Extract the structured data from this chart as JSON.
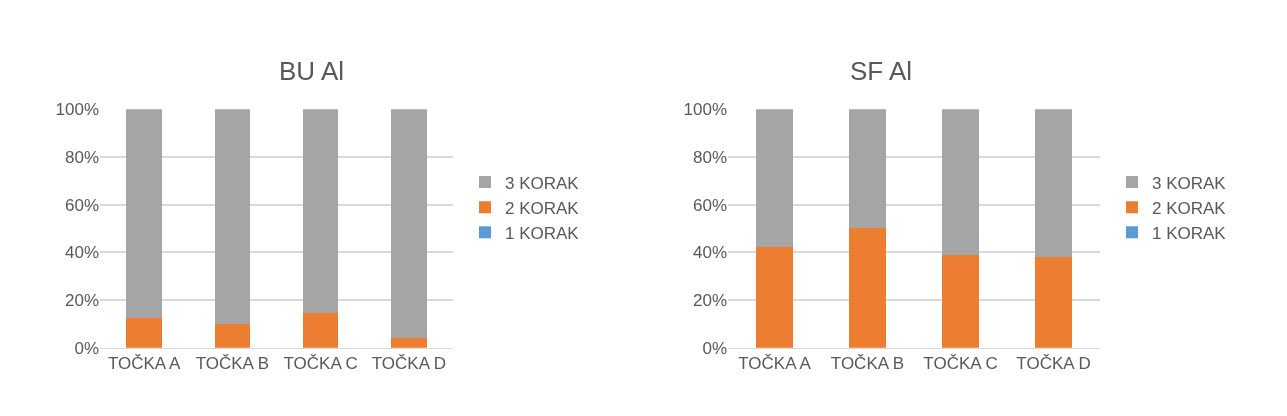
{
  "chart_data": [
    {
      "type": "bar",
      "title": "BU Al",
      "stacked": true,
      "categories": [
        "TOČKA A",
        "TOČKA B",
        "TOČKA C",
        "TOČKA D"
      ],
      "series": [
        {
          "name": "1 KORAK",
          "color": "#5b9bd5",
          "values": [
            0,
            0,
            0,
            0
          ]
        },
        {
          "name": "2 KORAK",
          "color": "#ed7d31",
          "values": [
            12.5,
            10,
            14.5,
            4.3
          ]
        },
        {
          "name": "3 KORAK",
          "color": "#a5a5a5",
          "values": [
            87.5,
            90,
            85.5,
            95.7
          ]
        }
      ],
      "ylim": [
        0,
        100
      ],
      "yticks": [
        {
          "value": 0,
          "label": "0%"
        },
        {
          "value": 20,
          "label": "20%"
        },
        {
          "value": 40,
          "label": "40%"
        },
        {
          "value": 60,
          "label": "60%"
        },
        {
          "value": 80,
          "label": "80%"
        },
        {
          "value": 100,
          "label": "100%"
        }
      ],
      "grid": "y",
      "legend": "right"
    },
    {
      "type": "bar",
      "title": "SF Al",
      "stacked": true,
      "categories": [
        "TOČKA A",
        "TOČKA B",
        "TOČKA C",
        "TOČKA D"
      ],
      "series": [
        {
          "name": "1 KORAK",
          "color": "#5b9bd5",
          "values": [
            0,
            0,
            0,
            0
          ]
        },
        {
          "name": "2 KORAK",
          "color": "#ed7d31",
          "values": [
            42.3,
            50.3,
            38.8,
            38.2
          ]
        },
        {
          "name": "3 KORAK",
          "color": "#a5a5a5",
          "values": [
            57.7,
            49.7,
            61.2,
            61.8
          ]
        }
      ],
      "ylim": [
        0,
        100
      ],
      "yticks": [
        {
          "value": 0,
          "label": "0%"
        },
        {
          "value": 20,
          "label": "20%"
        },
        {
          "value": 40,
          "label": "40%"
        },
        {
          "value": 60,
          "label": "60%"
        },
        {
          "value": 80,
          "label": "80%"
        },
        {
          "value": 100,
          "label": "100%"
        }
      ],
      "grid": "y",
      "legend": "right"
    }
  ]
}
